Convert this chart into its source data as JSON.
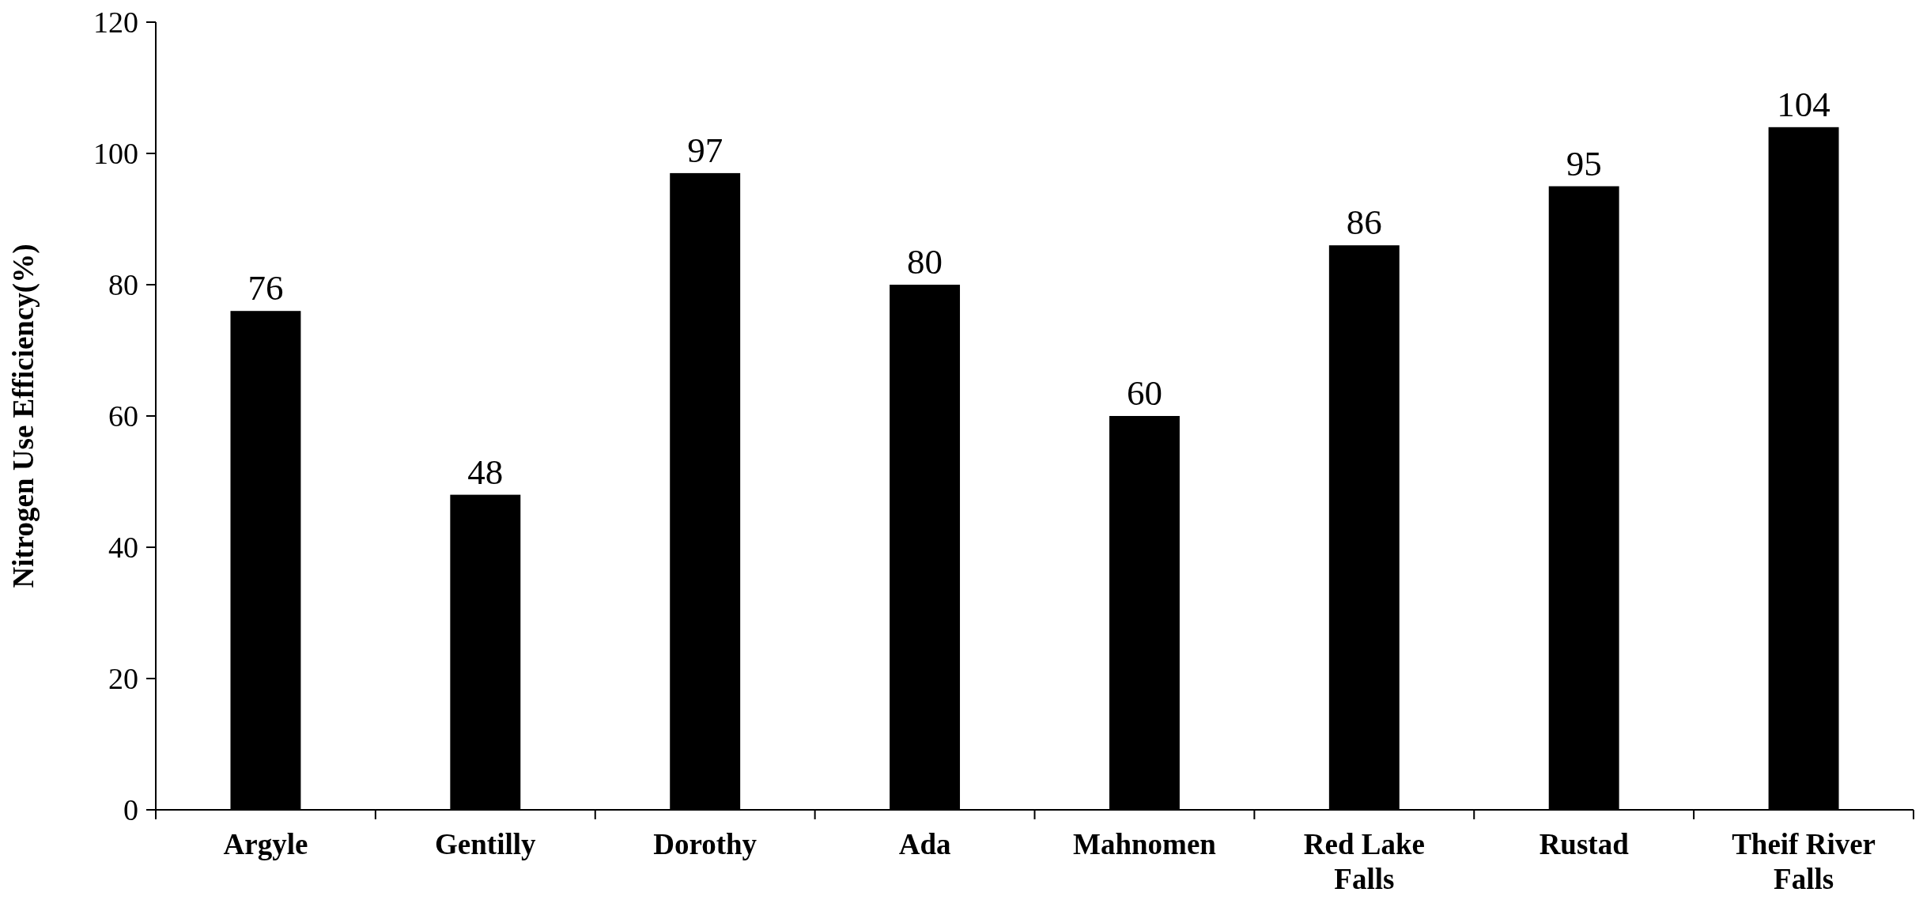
{
  "chart_data": {
    "type": "bar",
    "ylabel": "Nitrogen Use Efficiency(%)",
    "categories": [
      "Argyle",
      "Gentilly",
      "Dorothy",
      "Ada",
      "Mahnomen",
      "Red Lake Falls",
      "Rustad",
      "Theif River Falls"
    ],
    "values": [
      76,
      48,
      97,
      80,
      60,
      86,
      95,
      104
    ],
    "color": "#000000",
    "ylim": [
      0,
      120
    ],
    "yticks": [
      0,
      20,
      40,
      60,
      80,
      100,
      120
    ],
    "grid": false,
    "data_labels": true
  }
}
